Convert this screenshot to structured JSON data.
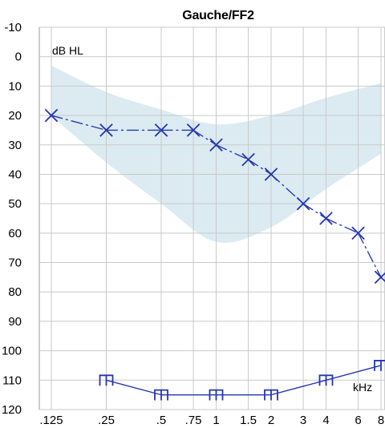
{
  "chart_data": {
    "type": "line",
    "title": "Gauche/FF2",
    "ylabel": "dB HL",
    "xlabel": "kHz",
    "y_inverted": true,
    "ylim": [
      -10,
      120
    ],
    "y_ticks": [
      "-10",
      "0",
      "10",
      "20",
      "30",
      "40",
      "50",
      "60",
      "70",
      "80",
      "90",
      "100",
      "110",
      "120"
    ],
    "x_tick_labels": [
      ".125",
      ".25",
      ".5",
      ".75",
      "1",
      "1.5",
      "2",
      "3",
      "4",
      "6",
      "8"
    ],
    "grid": true,
    "normal_range_band": {
      "color": "#dcebf2",
      "upper": [
        {
          "x": ".125",
          "y": 3
        },
        {
          "x": ".25",
          "y": 12
        },
        {
          "x": ".5",
          "y": 18
        },
        {
          "x": "1",
          "y": 23
        },
        {
          "x": "2",
          "y": 20
        },
        {
          "x": "4",
          "y": 14
        },
        {
          "x": "8",
          "y": 9
        }
      ],
      "lower": [
        {
          "x": ".125",
          "y": 20
        },
        {
          "x": ".25",
          "y": 36
        },
        {
          "x": ".5",
          "y": 50
        },
        {
          "x": "1",
          "y": 63
        },
        {
          "x": "2",
          "y": 58
        },
        {
          "x": "4",
          "y": 45
        },
        {
          "x": "8",
          "y": 33
        }
      ]
    },
    "series": [
      {
        "marker": "x",
        "color": "#2536b0",
        "line": "dash-dot",
        "points": [
          {
            "x": ".125",
            "y": 20
          },
          {
            "x": ".25",
            "y": 25
          },
          {
            "x": ".5",
            "y": 25
          },
          {
            "x": ".75",
            "y": 25
          },
          {
            "x": "1",
            "y": 30
          },
          {
            "x": "1.5",
            "y": 35
          },
          {
            "x": "2",
            "y": 40
          },
          {
            "x": "3",
            "y": 50
          },
          {
            "x": "4",
            "y": 55
          },
          {
            "x": "6",
            "y": 60
          },
          {
            "x": "8",
            "y": 75
          }
        ]
      },
      {
        "marker": "m",
        "color": "#2536b0",
        "line": "solid",
        "points": [
          {
            "x": ".25",
            "y": 110
          },
          {
            "x": ".5",
            "y": 115
          },
          {
            "x": "1",
            "y": 115
          },
          {
            "x": "2",
            "y": 115
          },
          {
            "x": "4",
            "y": 110
          },
          {
            "x": "8",
            "y": 105
          }
        ]
      }
    ]
  }
}
